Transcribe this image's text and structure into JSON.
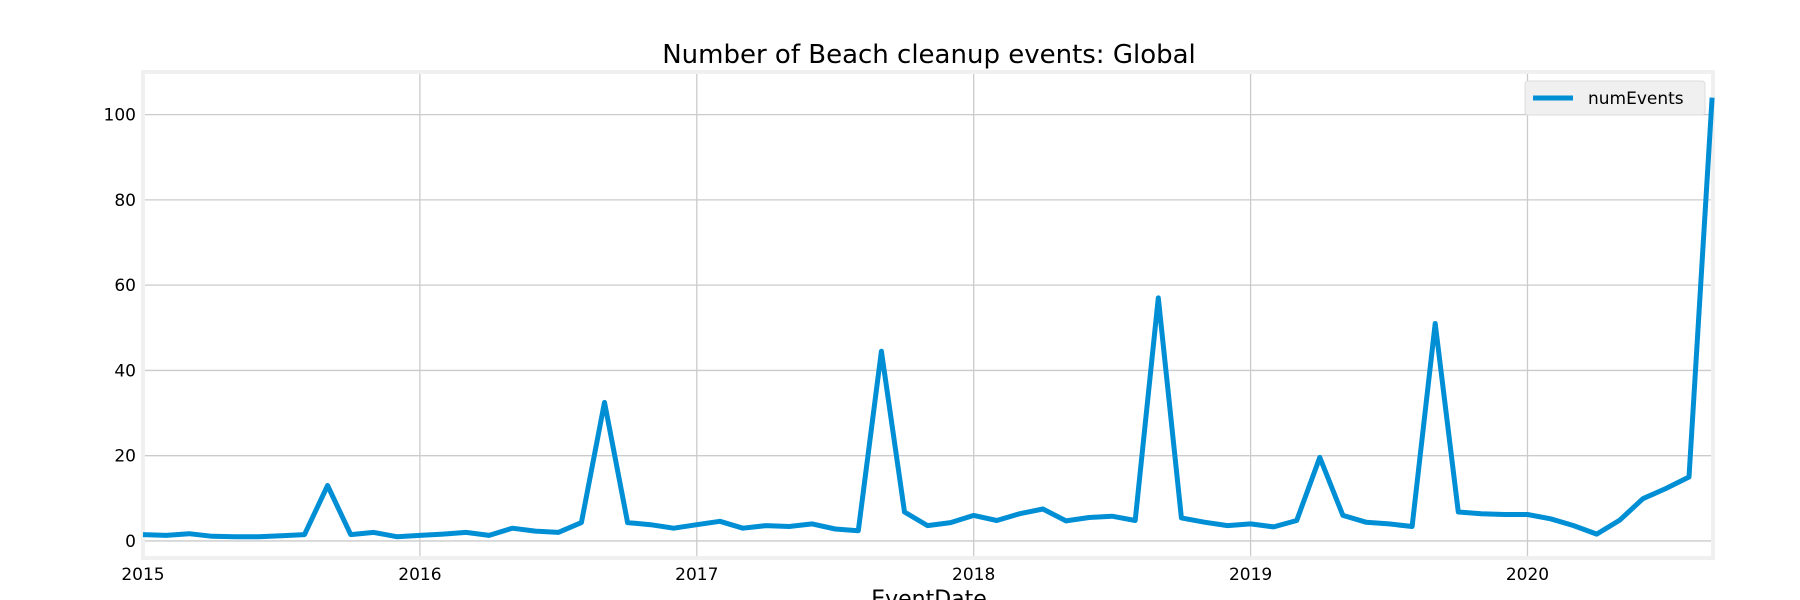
{
  "chart_data": {
    "type": "line",
    "title": "Number of Beach cleanup events: Global",
    "xlabel": "EventDate",
    "ylabel": "",
    "ylim": [
      -4,
      110
    ],
    "xlim": [
      2015,
      2020.67
    ],
    "x_tick_labels": [
      "2015",
      "2016",
      "2017",
      "2018",
      "2019",
      "2020"
    ],
    "x_tick_values": [
      2015,
      2016,
      2017,
      2018,
      2019,
      2020
    ],
    "y_tick_labels": [
      "0",
      "20",
      "40",
      "60",
      "80",
      "100"
    ],
    "y_tick_values": [
      0,
      20,
      40,
      60,
      80,
      100
    ],
    "grid": true,
    "legend_position": "top-right",
    "color": "#008fd5",
    "series": [
      {
        "name": "numEvents",
        "x": [
          "2015-01",
          "2015-02",
          "2015-03",
          "2015-04",
          "2015-05",
          "2015-06",
          "2015-07",
          "2015-08",
          "2015-09",
          "2015-10",
          "2015-11",
          "2015-12",
          "2016-01",
          "2016-02",
          "2016-03",
          "2016-04",
          "2016-05",
          "2016-06",
          "2016-07",
          "2016-08",
          "2016-09",
          "2016-10",
          "2016-11",
          "2016-12",
          "2017-01",
          "2017-02",
          "2017-03",
          "2017-04",
          "2017-05",
          "2017-06",
          "2017-07",
          "2017-08",
          "2017-09",
          "2017-10",
          "2017-11",
          "2017-12",
          "2018-01",
          "2018-02",
          "2018-03",
          "2018-04",
          "2018-05",
          "2018-06",
          "2018-07",
          "2018-08",
          "2018-09",
          "2018-10",
          "2018-11",
          "2018-12",
          "2019-01",
          "2019-02",
          "2019-03",
          "2019-04",
          "2019-05",
          "2019-06",
          "2019-07",
          "2019-08",
          "2019-09",
          "2019-10",
          "2019-11",
          "2019-12",
          "2020-01",
          "2020-02",
          "2020-03",
          "2020-04",
          "2020-05",
          "2020-06",
          "2020-07",
          "2020-08",
          "2020-09"
        ],
        "values": [
          1.5,
          1.3,
          1.7,
          1.1,
          1.0,
          1.0,
          1.2,
          1.5,
          13,
          1.5,
          2,
          1,
          1.3,
          1.6,
          2,
          1.3,
          3,
          2.3,
          2,
          4.3,
          32.5,
          4.3,
          3.8,
          3,
          3.8,
          4.6,
          3,
          3.6,
          3.4,
          4,
          2.8,
          2.4,
          44.5,
          6.8,
          3.6,
          4.3,
          6,
          4.8,
          6.4,
          7.5,
          4.7,
          5.5,
          5.8,
          4.8,
          57,
          5.4,
          4.4,
          3.6,
          4,
          3.3,
          4.8,
          19.6,
          6,
          4.4,
          4,
          3.4,
          51,
          6.8,
          6.4,
          6.2,
          6.2,
          5.2,
          3.6,
          1.6,
          4.9,
          9.9,
          12.3,
          15,
          104
        ]
      }
    ]
  }
}
